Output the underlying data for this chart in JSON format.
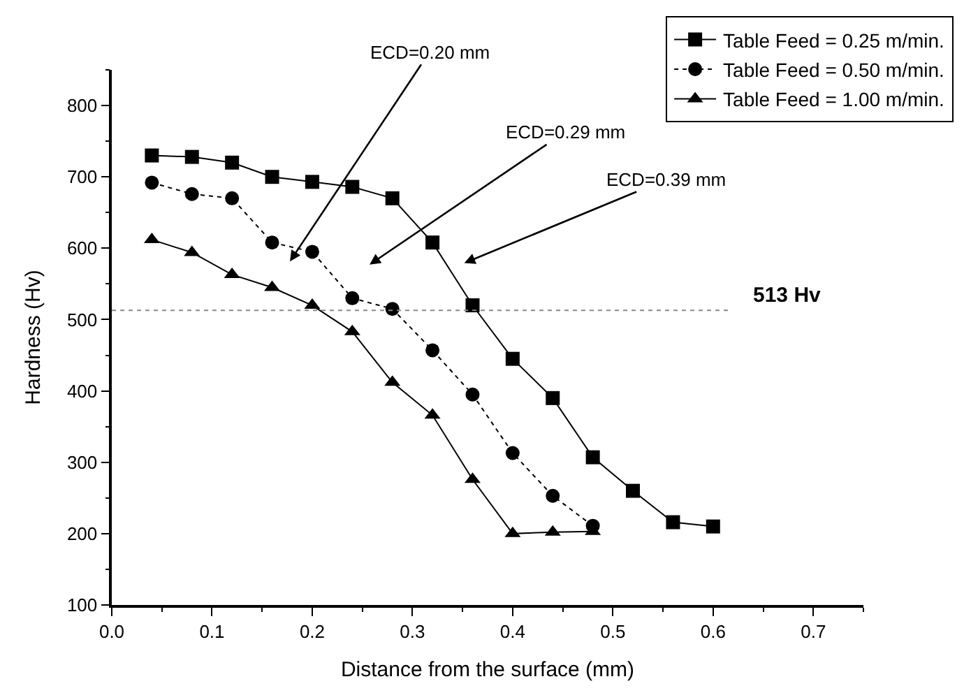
{
  "chart_data": {
    "type": "line",
    "xlabel": "Distance from the surface (mm)",
    "ylabel": "Hardness (Hv)",
    "x": [
      0.04,
      0.08,
      0.12,
      0.16,
      0.2,
      0.24,
      0.28,
      0.32,
      0.36,
      0.4,
      0.44,
      0.48,
      0.52,
      0.56,
      0.6
    ],
    "series": [
      {
        "name": "Table Feed = 0.25 m/min.",
        "color": "#000000",
        "marker": "square",
        "line_style": "solid",
        "values": [
          730,
          728,
          720,
          700,
          693,
          686,
          670,
          608,
          520,
          445,
          390,
          307,
          260,
          216,
          210
        ]
      },
      {
        "name": "Table Feed = 0.50 m/min.",
        "color": "#000000",
        "marker": "circle",
        "line_style": "dotted",
        "values": [
          692,
          676,
          670,
          608,
          595,
          530,
          515,
          457,
          395,
          313,
          253,
          211,
          null,
          null,
          null
        ]
      },
      {
        "name": "Table Feed = 1.00 m/min.",
        "color": "#000000",
        "marker": "triangle",
        "line_style": "solid",
        "values": [
          612,
          594,
          563,
          545,
          520,
          483,
          412,
          366,
          276,
          200,
          202,
          203,
          null,
          null,
          null
        ]
      }
    ],
    "xlim": [
      0,
      0.75
    ],
    "xticks": [
      {
        "value": 0,
        "label": "0.0"
      },
      0.1,
      0.2,
      0.3,
      0.4,
      0.5,
      0.6,
      0.7
    ],
    "ylim": [
      100,
      850
    ],
    "yticks": [
      100,
      200,
      300,
      400,
      500,
      600,
      700,
      800
    ],
    "ref_lines": [
      {
        "axis": "y",
        "value": 513,
        "label": "513 Hv",
        "color": "#888888",
        "line_style": "dotted"
      }
    ],
    "annotations": [
      "ECD=0.20 mm",
      "ECD=0.29 mm",
      "ECD=0.39 mm"
    ],
    "legend": "top right"
  }
}
